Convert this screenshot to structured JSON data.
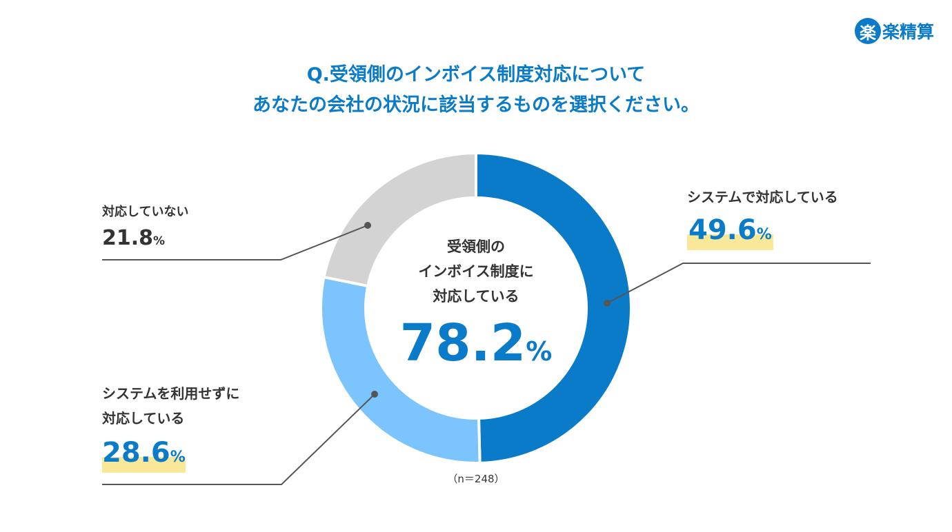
{
  "logo": {
    "mark": "楽",
    "text": "楽精算"
  },
  "chart_data": {
    "type": "pie",
    "donut": true,
    "title": [
      "Q.受領側のインボイス制度対応について",
      "あなたの会社の状況に該当するものを選択ください。"
    ],
    "center_label": [
      "受領側の",
      "インボイス制度に",
      "対応している"
    ],
    "center_value": "78.2",
    "center_unit": "%",
    "n_label": "（n＝248）",
    "slices": [
      {
        "label": "システムで対応している",
        "value": 49.6,
        "display": "49.6",
        "color": "#0a7bc8"
      },
      {
        "label_lines": [
          "システムを利用せずに",
          "対応している"
        ],
        "label": "システムを利用せずに対応している",
        "value": 28.6,
        "display": "28.6",
        "color": "#7bc4fd"
      },
      {
        "label": "対応していない",
        "value": 21.8,
        "display": "21.8",
        "color": "#d3d3d3"
      }
    ],
    "unit": "%"
  }
}
